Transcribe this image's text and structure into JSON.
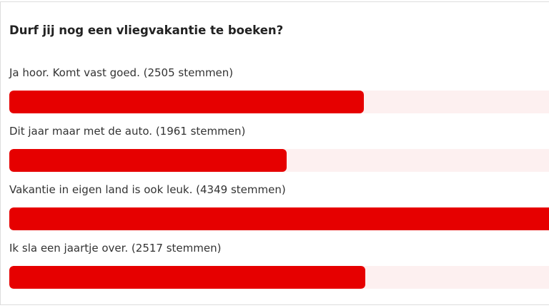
{
  "poll": {
    "question": "Durf jij nog een vliegvakantie te boeken?",
    "options": [
      {
        "label": "Ja hoor. Komt vast goed. (2505 stemmen)",
        "votes": 2505
      },
      {
        "label": "Dit jaar maar met de auto. (1961 stemmen)",
        "votes": 1961
      },
      {
        "label": "Vakantie in eigen land is ook leuk. (4349 stemmen)",
        "votes": 4349
      },
      {
        "label": "Ik sla een jaartje over. (2517 stemmen)",
        "votes": 2517
      }
    ]
  }
}
